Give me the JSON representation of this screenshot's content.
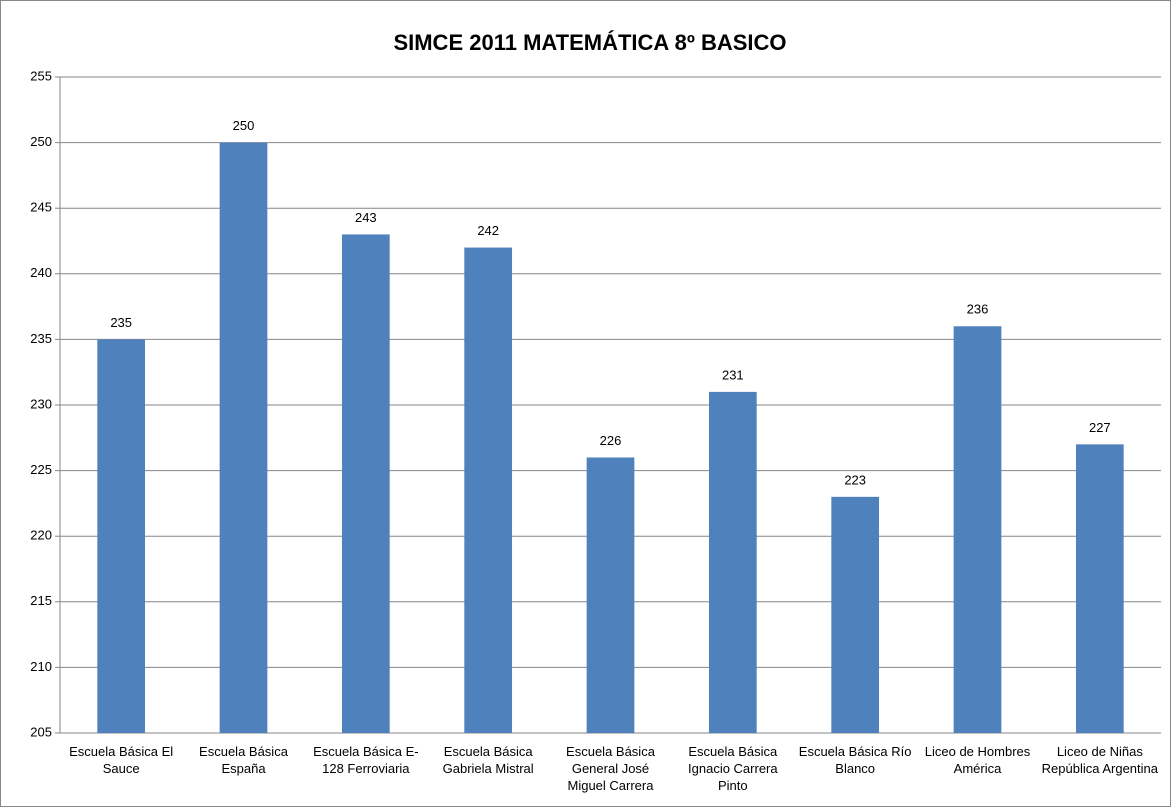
{
  "chart_data": {
    "type": "bar",
    "title": "SIMCE 2011 MATEMÁTICA 8º BASICO",
    "categories": [
      "Escuela Básica El Sauce",
      "Escuela Básica España",
      "Escuela Básica E-128 Ferroviaria",
      "Escuela Básica Gabriela Mistral",
      "Escuela Básica General José Miguel Carrera",
      "Escuela Básica Ignacio Carrera Pinto",
      "Escuela Básica Río Blanco",
      "Liceo de Hombres América",
      "Liceo de Niñas República Argentina"
    ],
    "values": [
      235,
      250,
      243,
      242,
      226,
      231,
      223,
      236,
      227
    ],
    "color": "#4f81bd",
    "ylim": [
      205,
      255
    ],
    "yticks": [
      205,
      210,
      215,
      220,
      225,
      230,
      235,
      240,
      245,
      250,
      255
    ],
    "grid": true
  }
}
